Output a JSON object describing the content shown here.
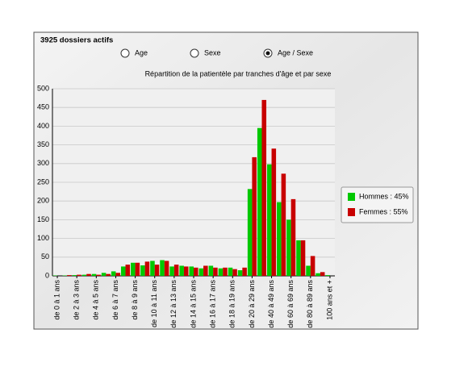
{
  "window": {
    "title": "3925 dossiers actifs",
    "radios": [
      {
        "label": "Age",
        "selected": false
      },
      {
        "label": "Sexe",
        "selected": false
      },
      {
        "label": "Age / Sexe",
        "selected": true
      }
    ]
  },
  "chart_data": {
    "type": "bar",
    "title": "Répartition de la patientèle par tranches d'âge et par sexe",
    "categories": [
      "de 0 à 1 ans",
      null,
      "de 2 à 3 ans",
      null,
      "de 4 à 5 ans",
      null,
      "de 6 à 7 ans",
      null,
      "de 8 à 9 ans",
      null,
      "de 10 à 11 ans",
      null,
      "de 12 à 13 ans",
      null,
      "de 14 à 15 ans",
      null,
      "de 16 à 17 ans",
      null,
      "de 18 à 19 ans",
      null,
      "de 20 à 29 ans",
      null,
      "de 40 à 49 ans",
      null,
      "de 60 à 69 ans",
      null,
      "de 80 à 89 ans",
      null,
      "100 ans et +"
    ],
    "series": [
      {
        "name": "Hommes : 45%",
        "color": "#00c800",
        "values": [
          1,
          1,
          2,
          3,
          5,
          8,
          12,
          25,
          35,
          28,
          40,
          42,
          25,
          27,
          25,
          20,
          27,
          20,
          22,
          15,
          232,
          395,
          298,
          197,
          150,
          95,
          27,
          7,
          2
        ]
      },
      {
        "name": "Femmes : 55%",
        "color": "#c80000",
        "values": [
          0,
          2,
          3,
          5,
          3,
          5,
          8,
          30,
          35,
          38,
          30,
          40,
          30,
          25,
          22,
          27,
          22,
          22,
          18,
          22,
          317,
          470,
          340,
          273,
          205,
          95,
          53,
          10,
          0
        ]
      }
    ],
    "ylim": [
      0,
      500
    ],
    "yticks": [
      0,
      50,
      100,
      150,
      200,
      250,
      300,
      350,
      400,
      450,
      500
    ],
    "grid": true,
    "legend": "right"
  }
}
